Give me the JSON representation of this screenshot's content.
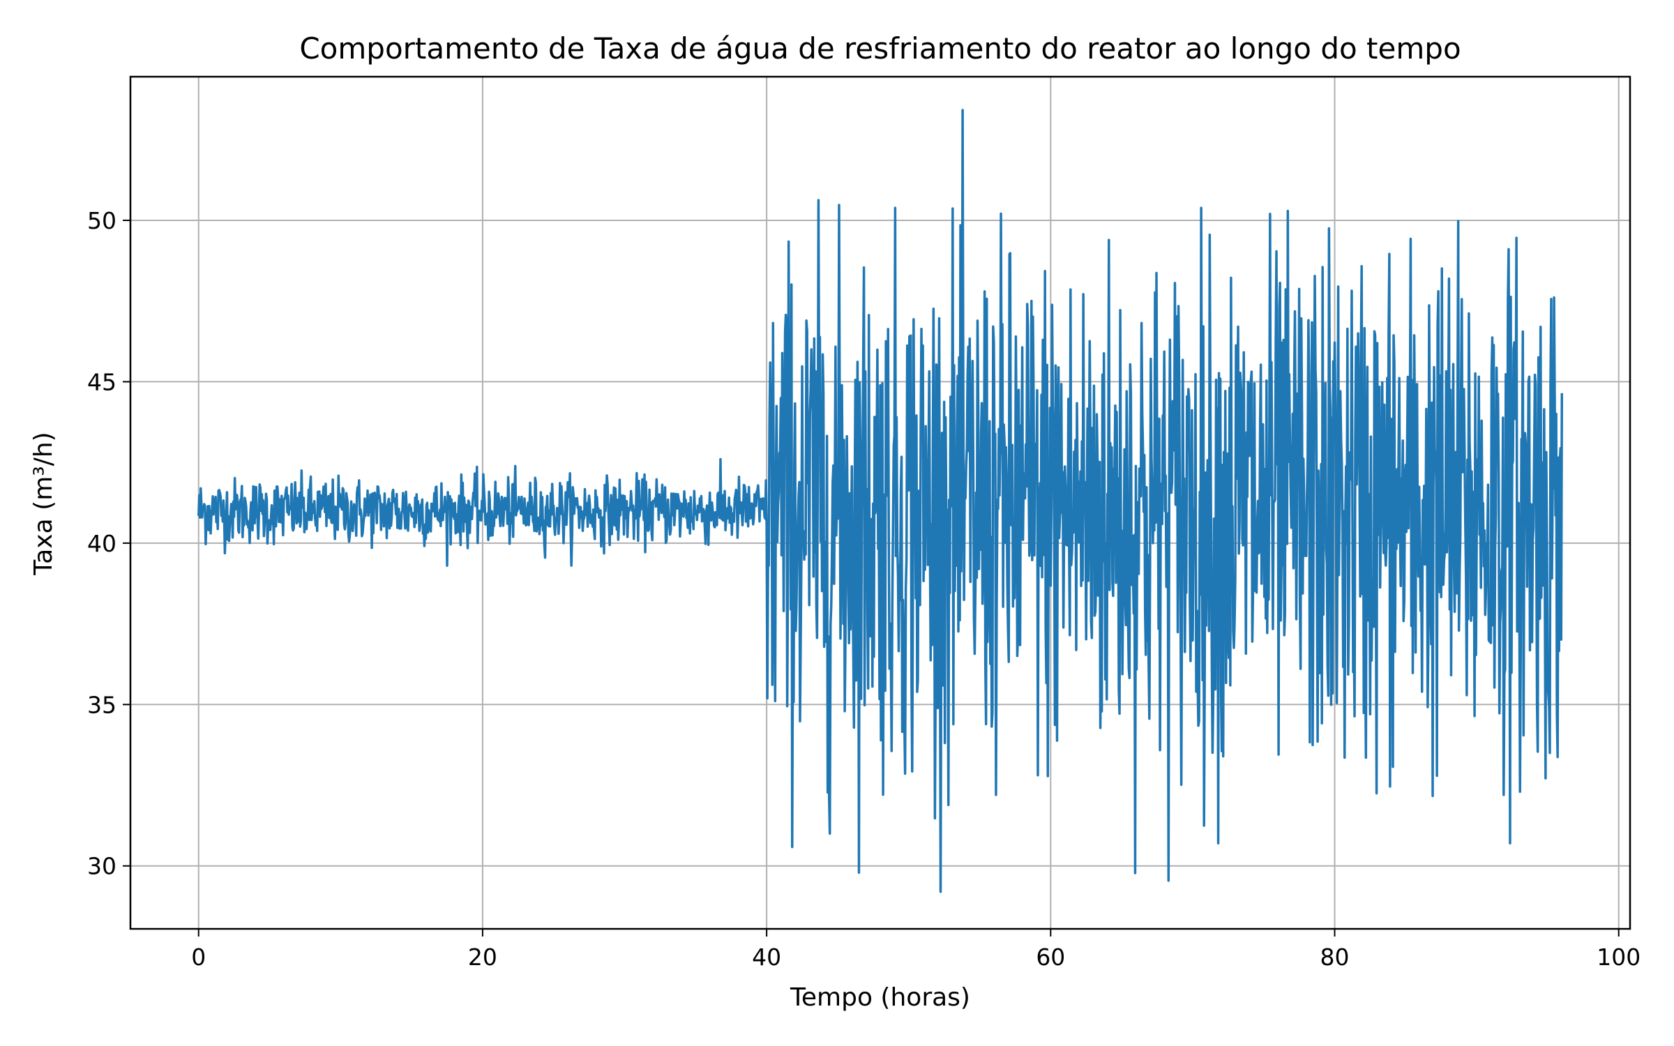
{
  "chart_data": {
    "type": "line",
    "title": "Comportamento de Taxa de água de resfriamento do reator ao longo do tempo",
    "xlabel": "Tempo (horas)",
    "ylabel": "Taxa (m³/h)",
    "xlim": [
      -4.8,
      100.8
    ],
    "ylim": [
      28.05,
      54.45
    ],
    "xticks": [
      0,
      20,
      40,
      60,
      80,
      100
    ],
    "yticks": [
      30,
      35,
      40,
      45,
      50
    ],
    "xtick_labels": [
      "0",
      "20",
      "40",
      "60",
      "80",
      "100"
    ],
    "ytick_labels": [
      "30",
      "35",
      "40",
      "45",
      "50"
    ],
    "grid": true,
    "colors": {
      "series": "#1f77b4",
      "grid": "#b0b0b0",
      "axis": "#000000"
    },
    "series": [
      {
        "x_start": 0,
        "x_end": 96,
        "step": 0.05,
        "segments": [
          {
            "from": 0,
            "to": 40,
            "mean": 41.0,
            "approx_min": 39.3,
            "approx_max": 42.6
          },
          {
            "from": 40,
            "to": 96,
            "mean": 41.0,
            "approx_min": 29.2,
            "approx_max": 53.6
          }
        ]
      }
    ]
  }
}
